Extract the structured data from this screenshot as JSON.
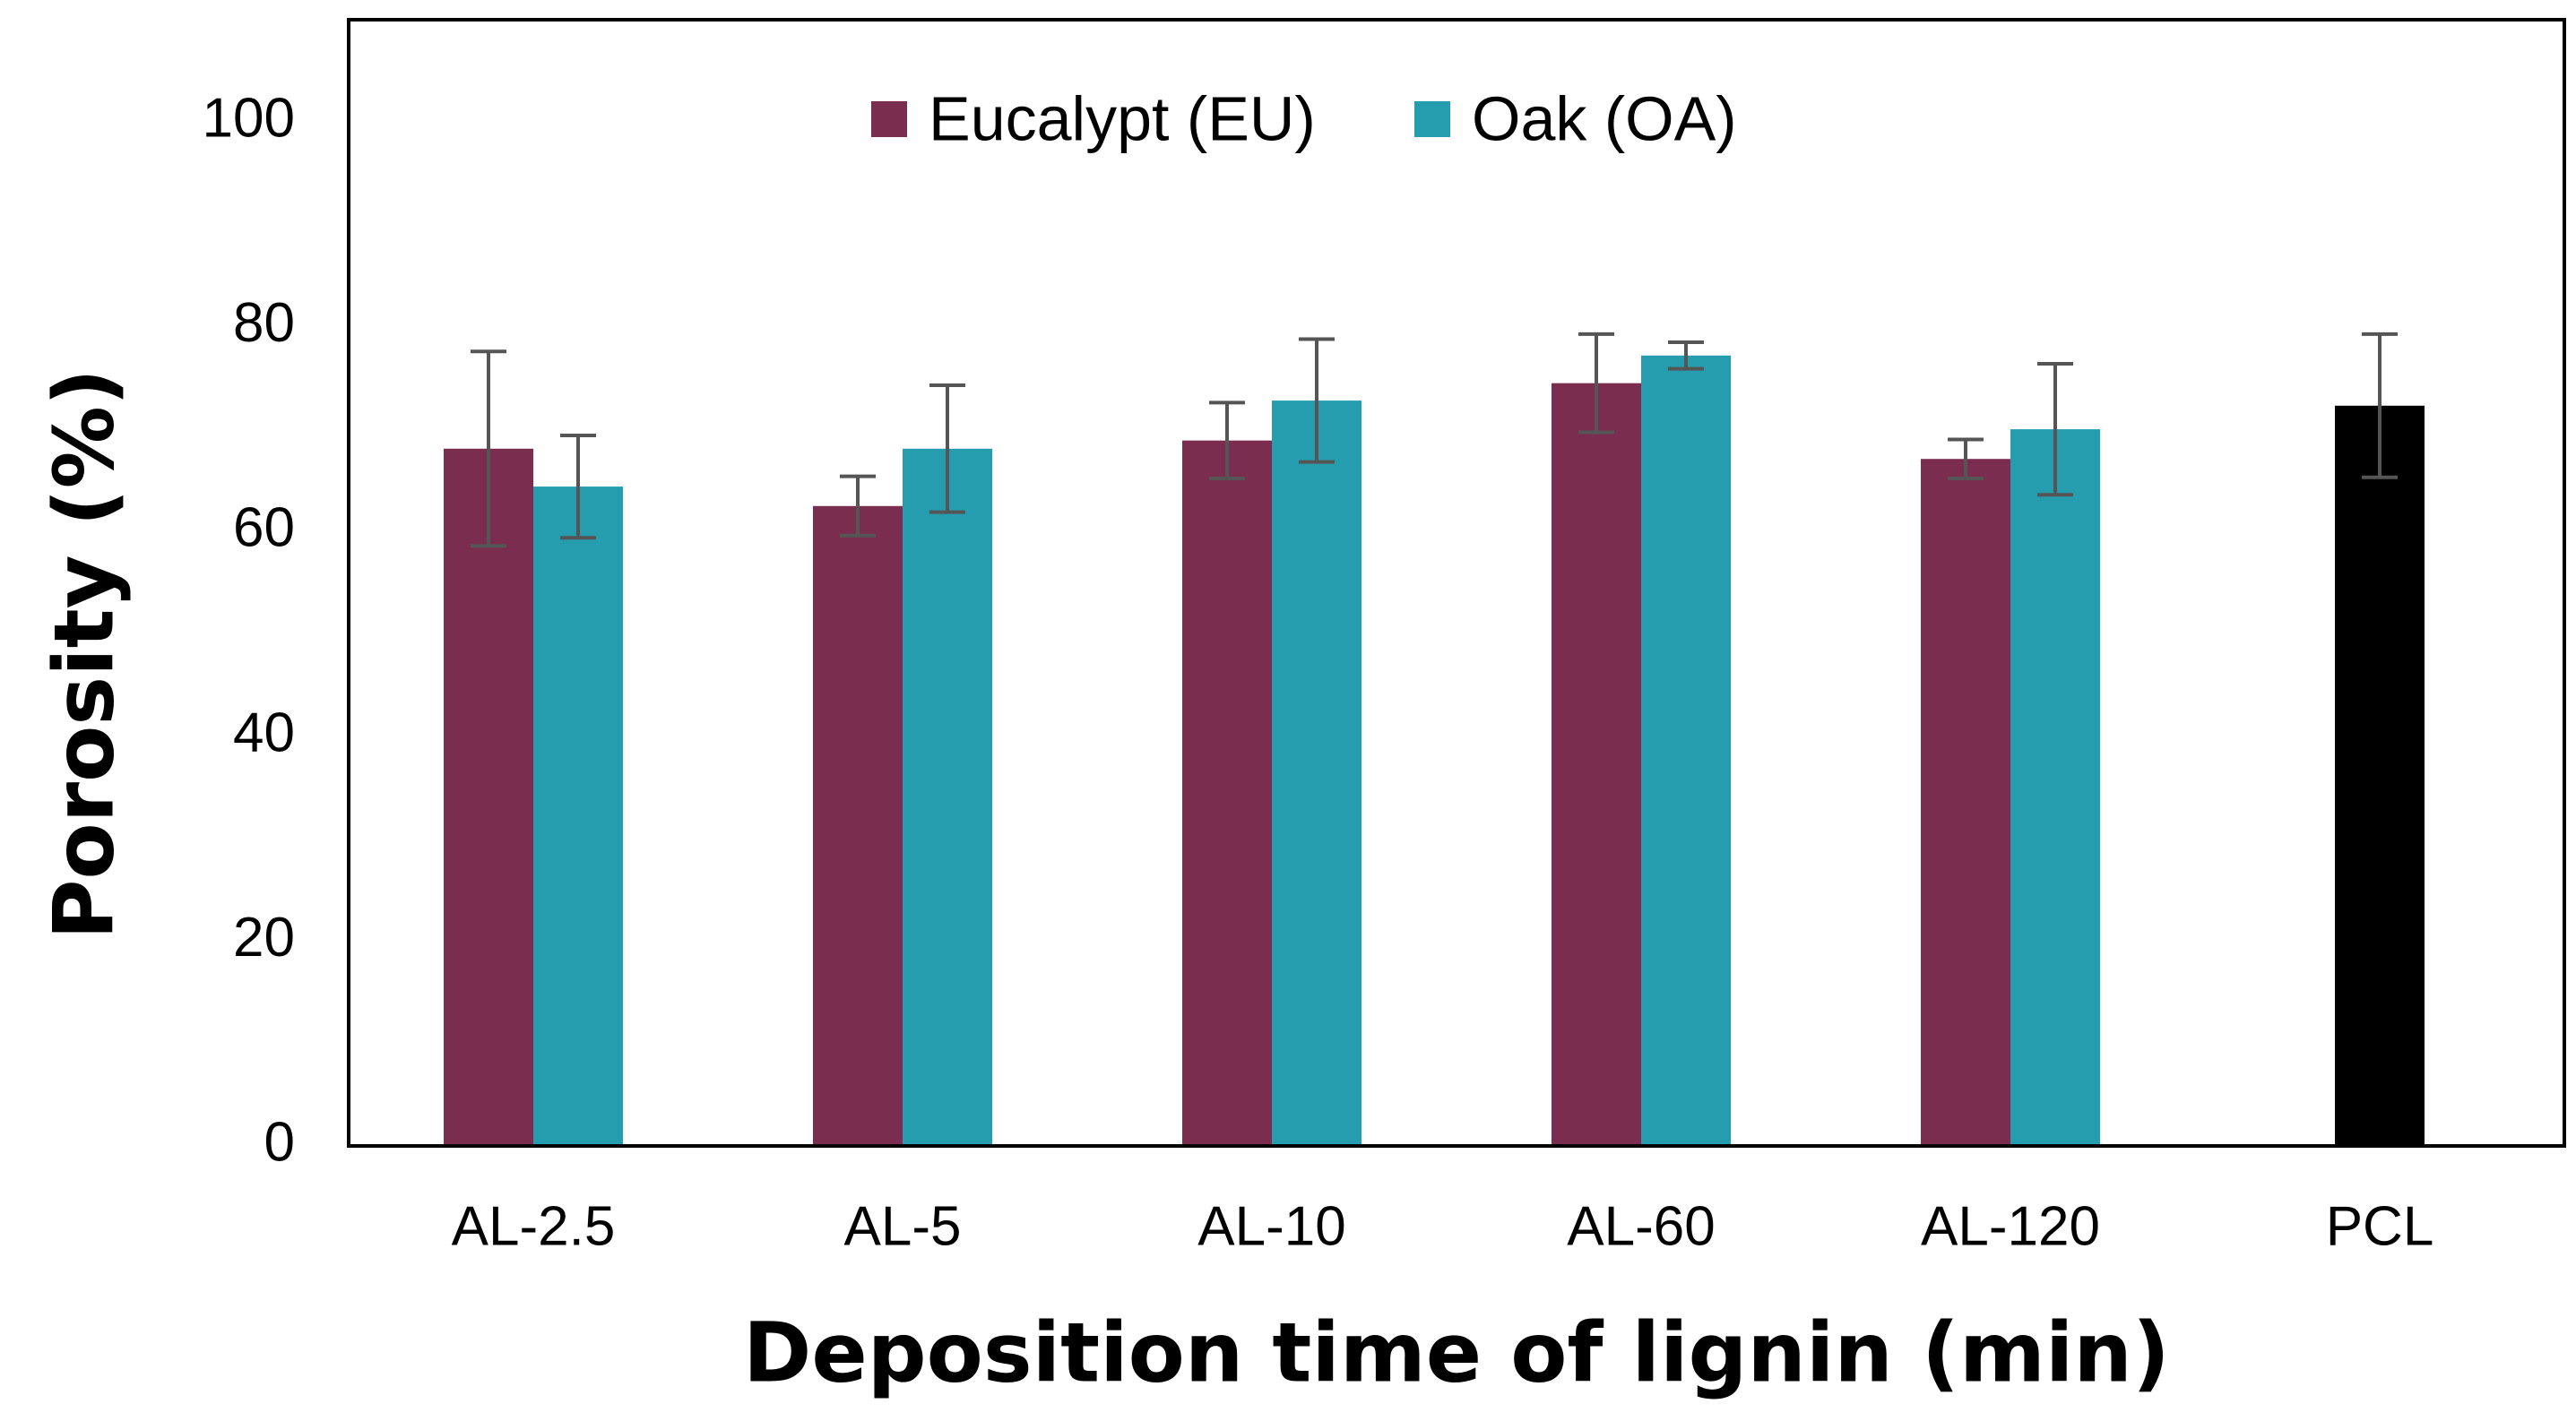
{
  "colors": {
    "eucalypt": "#7a2d4f",
    "oak": "#259daf",
    "pcl": "#000000",
    "error_bar": "#555555",
    "axis": "#000000"
  },
  "chart_data": {
    "type": "bar",
    "title": "",
    "xlabel": "Deposition time of lignin (min)",
    "ylabel": "Porosity (%)",
    "ylim": [
      0,
      110
    ],
    "yticks": [
      0,
      20,
      40,
      60,
      80,
      100
    ],
    "ytick_labels": [
      "0",
      "20",
      "40",
      "60",
      "80",
      "100"
    ],
    "categories": [
      "AL-2.5",
      "AL-5",
      "AL-10",
      "AL-60",
      "AL-120",
      "PCL"
    ],
    "grid": false,
    "legend_position": "top-center",
    "series": [
      {
        "name": "Eucalypt (EU)",
        "color_key": "eucalypt",
        "values": [
          68.1,
          62.5,
          68.9,
          74.5,
          67.1,
          null
        ],
        "errors": [
          9.5,
          2.9,
          3.7,
          4.8,
          1.9,
          null
        ]
      },
      {
        "name": "Oak (OA)",
        "color_key": "oak",
        "values": [
          64.4,
          68.1,
          72.8,
          77.2,
          70.0,
          null
        ],
        "errors": [
          5.0,
          6.2,
          6.0,
          1.3,
          6.4,
          null
        ]
      },
      {
        "name": "PCL",
        "color_key": "pcl",
        "values": [
          null,
          null,
          null,
          null,
          null,
          72.3
        ],
        "errors": [
          null,
          null,
          null,
          null,
          null,
          7.0
        ]
      }
    ]
  }
}
